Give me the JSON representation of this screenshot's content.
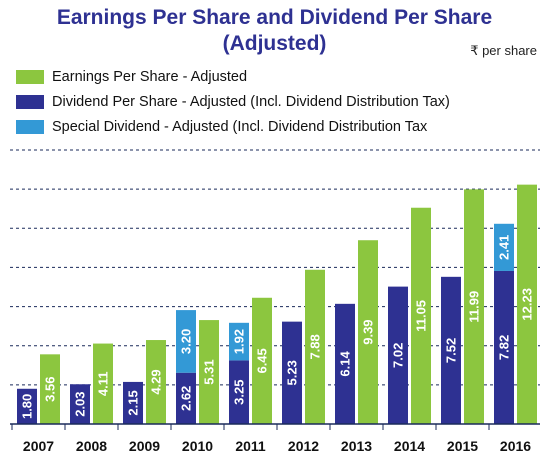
{
  "chart_data": {
    "type": "bar",
    "title": "Earnings Per Share and Dividend Per Share",
    "subtitle": "(Adjusted)",
    "unit_label": "₹ per share",
    "categories": [
      "2007",
      "2008",
      "2009",
      "2010",
      "2011",
      "2012",
      "2013",
      "2014",
      "2015",
      "2016"
    ],
    "series": [
      {
        "name": "Earnings Per Share - Adjusted",
        "color": "#8cc63f",
        "values": [
          3.56,
          4.11,
          4.29,
          5.31,
          6.45,
          7.88,
          9.39,
          11.05,
          11.99,
          12.23
        ]
      },
      {
        "name": "Dividend Per Share - Adjusted (Incl. Dividend Distribution Tax)",
        "color": "#2e3192",
        "values": [
          1.8,
          2.03,
          2.15,
          2.62,
          3.25,
          5.23,
          6.14,
          7.02,
          7.52,
          7.82
        ]
      },
      {
        "name": "Special Dividend - Adjusted (Incl. Dividend Distribution Tax",
        "color": "#3399d6",
        "values": [
          null,
          null,
          null,
          3.2,
          1.92,
          null,
          null,
          null,
          null,
          2.41
        ]
      }
    ],
    "value_labels": {
      "earnings": [
        "3.56",
        "4.11",
        "4.29",
        "5.31",
        "6.45",
        "7.88",
        "9.39",
        "11.05",
        "11.99",
        "12.23"
      ],
      "dividend": [
        "1.80",
        "2.03",
        "2.15",
        "2.62",
        "3.25",
        "5.23",
        "6.14",
        "7.02",
        "7.52",
        "7.82"
      ],
      "special": [
        null,
        null,
        null,
        "3.20",
        "1.92",
        null,
        null,
        null,
        null,
        "2.41"
      ]
    },
    "ylim": [
      0,
      14
    ],
    "grid": true,
    "legend": "top-left"
  }
}
